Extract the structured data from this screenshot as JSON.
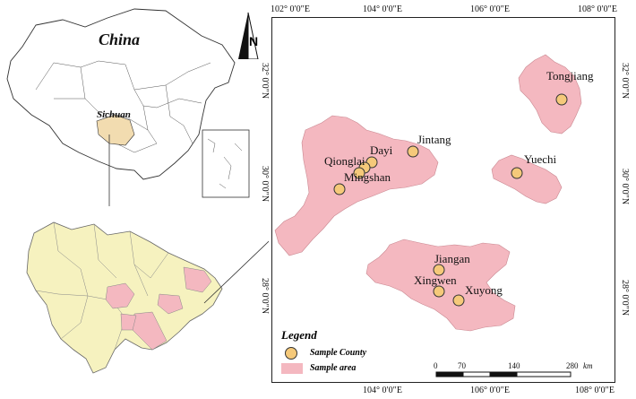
{
  "inset": {
    "country_label": "China",
    "province_label": "Sichuan"
  },
  "coordinates": {
    "top": [
      "102° 0′0″E",
      "104° 0′0″E",
      "106° 0′0″E",
      "108° 0′0″E"
    ],
    "bottom": [
      "104° 0′0″E",
      "106° 0′0″E",
      "108° 0′0″E"
    ],
    "left": [
      "32° 0′0″N",
      "30° 0′0″N",
      "28° 0′0″N"
    ],
    "right": [
      "32° 0′0″N",
      "30° 0′0″N",
      "28° 0′0″N"
    ]
  },
  "counties": [
    "Tongjiang",
    "Jintang",
    "Dayi",
    "Qionglai",
    "Mingshan",
    "Yuechi",
    "Jiangan",
    "Xingwen",
    "Xuyong"
  ],
  "legend": {
    "title": "Legend",
    "sample_county": "Sample County",
    "sample_area": "Sample area"
  },
  "scale": {
    "ticks": [
      "0",
      "70",
      "140",
      "280"
    ],
    "unit": "km"
  },
  "colors": {
    "sample_area": "#f4b8c0",
    "sample_county": "#f5c97a",
    "sichuan": "#f6f2bf"
  },
  "north_arrow": "N"
}
